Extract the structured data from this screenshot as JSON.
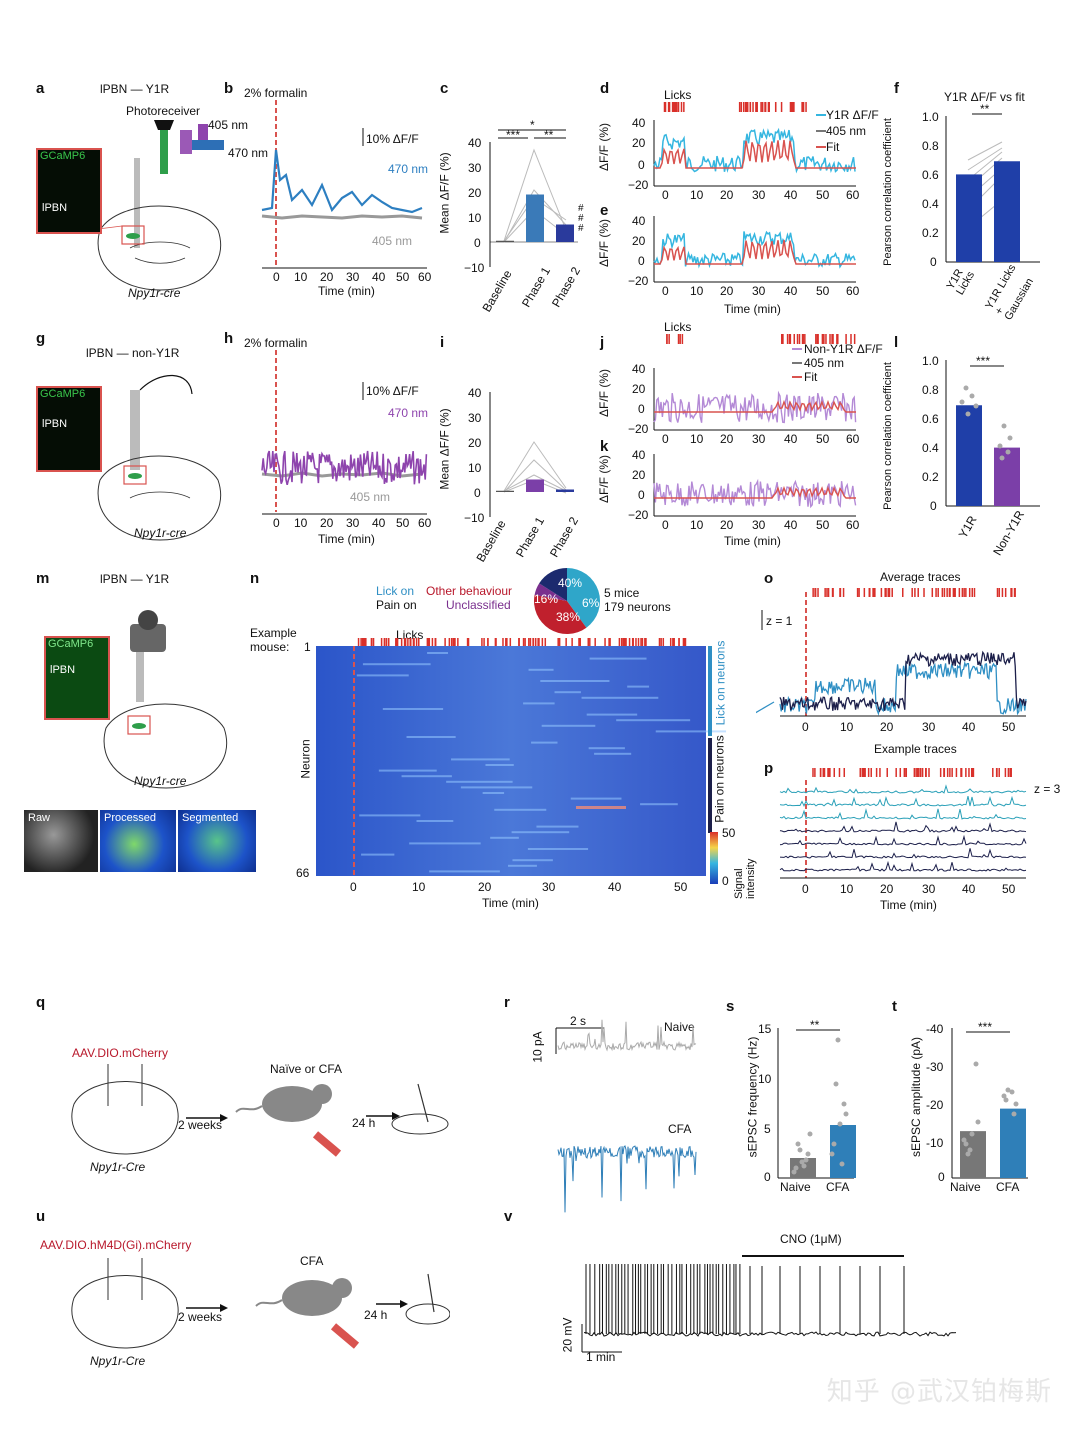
{
  "panels": {
    "a": {
      "letter": "a",
      "title": "lPBN — Y1R",
      "photoreceiver": "Photoreceiver",
      "nm405": "405 nm",
      "nm470": "470 nm",
      "gcamp": "GCaMP6",
      "region": "lPBN",
      "mouse": "Npy1r-cre"
    },
    "b": {
      "letter": "b",
      "stim": "2% formalin",
      "scale": "10% ΔF/F",
      "trace470": "470 nm",
      "trace405": "405 nm",
      "xlabel": "Time (min)",
      "xticks": [
        "0",
        "10",
        "20",
        "30",
        "40",
        "50",
        "60"
      ]
    },
    "c": {
      "letter": "c",
      "ylabel": "Mean ΔF/F (%)",
      "yticks": [
        "40",
        "30",
        "20",
        "10",
        "0",
        "−10"
      ],
      "categories": [
        "Baseline",
        "Phase 1",
        "Phase 2"
      ],
      "sig_top": "*",
      "sig_left": "***",
      "sig_right": "**",
      "sig_hash": "# # #"
    },
    "d": {
      "letter": "d",
      "licks": "Licks",
      "ylabel": "ΔF/F (%)",
      "yticks": [
        "40",
        "20",
        "0",
        "−20"
      ],
      "legend": [
        "Y1R ΔF/F",
        "405 nm",
        "Fit"
      ],
      "xticks": [
        "0",
        "10",
        "20",
        "30",
        "40",
        "50",
        "60"
      ]
    },
    "e": {
      "letter": "e",
      "ylabel": "ΔF/F (%)",
      "yticks": [
        "40",
        "20",
        "0",
        "−20"
      ],
      "xticks": [
        "0",
        "10",
        "20",
        "30",
        "40",
        "50",
        "60"
      ],
      "xlabel": "Time (min)"
    },
    "f": {
      "letter": "f",
      "title": "Y1R ΔF/F vs fit",
      "ylabel": "Pearson correlation coefficient",
      "yticks": [
        "1.0",
        "0.8",
        "0.6",
        "0.4",
        "0.2",
        "0"
      ],
      "categories": [
        "Y1R Licks",
        "Y1R Licks + Gaussian"
      ],
      "sig": "**"
    },
    "g": {
      "letter": "g",
      "title": "lPBN — non-Y1R",
      "gcamp": "GCaMP6",
      "region": "lPBN",
      "mouse": "Npy1r-cre"
    },
    "h": {
      "letter": "h",
      "stim": "2% formalin",
      "scale": "10% ΔF/F",
      "trace470": "470 nm",
      "trace405": "405 nm",
      "xlabel": "Time (min)",
      "xticks": [
        "0",
        "10",
        "20",
        "30",
        "40",
        "50",
        "60"
      ]
    },
    "i": {
      "letter": "i",
      "ylabel": "Mean ΔF/F (%)",
      "yticks": [
        "40",
        "30",
        "20",
        "10",
        "0",
        "−10"
      ],
      "categories": [
        "Baseline",
        "Phase 1",
        "Phase 2"
      ]
    },
    "j": {
      "letter": "j",
      "licks": "Licks",
      "ylabel": "ΔF/F (%)",
      "yticks": [
        "40",
        "20",
        "0",
        "−20"
      ],
      "legend": [
        "Non-Y1R ΔF/F",
        "405 nm",
        "Fit"
      ],
      "xticks": [
        "0",
        "10",
        "20",
        "30",
        "40",
        "50",
        "60"
      ]
    },
    "k": {
      "letter": "k",
      "ylabel": "ΔF/F (%)",
      "yticks": [
        "40",
        "20",
        "0",
        "−20"
      ],
      "xticks": [
        "0",
        "10",
        "20",
        "30",
        "40",
        "50",
        "60"
      ],
      "xlabel": "Time (min)"
    },
    "l": {
      "letter": "l",
      "ylabel": "Pearson correlation coefficient",
      "yticks": [
        "1.0",
        "0.8",
        "0.6",
        "0.4",
        "0.2",
        "0"
      ],
      "categories": [
        "Y1R",
        "Non-Y1R"
      ],
      "sig": "***"
    },
    "m": {
      "letter": "m",
      "title": "lPBN — Y1R",
      "gcamp": "GCaMP6",
      "region": "lPBN",
      "mouse": "Npy1r-cre",
      "img_raw": "Raw",
      "img_processed": "Processed",
      "img_segmented": "Segmented"
    },
    "n": {
      "letter": "n",
      "lick_on": "Lick on",
      "pain_on": "Pain on",
      "other": "Other behaviour",
      "unclassified": "Unclassified",
      "mice": "5 mice",
      "neurons": "179 neurons",
      "example": "Example",
      "mouse": "mouse:",
      "row_first": "1",
      "row_last": "66",
      "licks": "Licks",
      "ylabel": "Neuron",
      "xlabel": "Time (min)",
      "xticks": [
        "0",
        "10",
        "20",
        "30",
        "40",
        "50"
      ],
      "group1": "Lick on neurons",
      "group2": "Pain on neurons",
      "cbar_label": "Signal intensity",
      "cbar_max": "50",
      "cbar_min": "0",
      "pie": [
        {
          "label": "40%",
          "value": 40
        },
        {
          "label": "38%",
          "value": 38
        },
        {
          "label": "6%",
          "value": 6
        },
        {
          "label": "16%",
          "value": 16
        }
      ]
    },
    "o": {
      "letter": "o",
      "title": "Average traces",
      "scale": "z = 1",
      "xticks": [
        "0",
        "10",
        "20",
        "30",
        "40",
        "50"
      ],
      "subtitle": "Example traces"
    },
    "p": {
      "letter": "p",
      "scale": "z = 3",
      "xticks": [
        "0",
        "10",
        "20",
        "30",
        "40",
        "50"
      ],
      "xlabel": "Time (min)"
    },
    "q": {
      "letter": "q",
      "virus": "AAV.DIO.mCherry",
      "weeks": "2 weeks",
      "cond": "Naïve or CFA",
      "hours": "24 h",
      "mouse": "Npy1r-Cre"
    },
    "r": {
      "letter": "r",
      "time_scale": "2 s",
      "amp_scale": "10 pA",
      "naive": "Naive",
      "cfa": "CFA"
    },
    "s": {
      "letter": "s",
      "ylabel": "sEPSC frequency (Hz)",
      "yticks": [
        "15",
        "10",
        "5",
        "0"
      ],
      "categories": [
        "Naive",
        "CFA"
      ],
      "sig": "**"
    },
    "t": {
      "letter": "t",
      "ylabel": "sEPSC amplitude (pA)",
      "yticks": [
        "-40",
        "-30",
        "-20",
        "-10",
        "0"
      ],
      "categories": [
        "Naive",
        "CFA"
      ],
      "sig": "***"
    },
    "u": {
      "letter": "u",
      "virus": "AAV.DIO.hM4D(Gi).mCherry",
      "weeks": "2 weeks",
      "cond": "CFA",
      "hours": "24 h",
      "mouse": "Npy1r-Cre"
    },
    "v": {
      "letter": "v",
      "drug": "CNO (1μM)",
      "amp_scale": "20 mV",
      "time_scale": "1 min"
    }
  },
  "watermark": "知乎 @武汉铂梅斯",
  "chart_data": [
    {
      "panel": "c",
      "type": "bar",
      "title": "",
      "categories": [
        "Baseline",
        "Phase 1",
        "Phase 2"
      ],
      "values": [
        0.5,
        19,
        7
      ],
      "ylabel": "Mean ΔF/F (%)",
      "ylim": [
        -10,
        40
      ]
    },
    {
      "panel": "f",
      "type": "bar",
      "title": "Y1R ΔF/F vs fit",
      "categories": [
        "Y1R Licks",
        "Y1R Licks + Gaussian"
      ],
      "values": [
        0.6,
        0.69
      ],
      "ylabel": "Pearson correlation coefficient",
      "ylim": [
        0,
        1.0
      ]
    },
    {
      "panel": "i",
      "type": "bar",
      "title": "",
      "categories": [
        "Baseline",
        "Phase 1",
        "Phase 2"
      ],
      "values": [
        0.5,
        5,
        1
      ],
      "ylabel": "Mean ΔF/F (%)",
      "ylim": [
        -10,
        40
      ]
    },
    {
      "panel": "l",
      "type": "bar",
      "title": "",
      "categories": [
        "Y1R",
        "Non-Y1R"
      ],
      "values": [
        0.69,
        0.4
      ],
      "ylabel": "Pearson correlation coefficient",
      "ylim": [
        0,
        1.0
      ]
    },
    {
      "panel": "s",
      "type": "bar",
      "title": "",
      "categories": [
        "Naive",
        "CFA"
      ],
      "values": [
        2,
        5.3
      ],
      "ylabel": "sEPSC frequency (Hz)",
      "ylim": [
        0,
        15
      ]
    },
    {
      "panel": "t",
      "type": "bar",
      "title": "",
      "categories": [
        "Naive",
        "CFA"
      ],
      "values": [
        -12.5,
        -18.5
      ],
      "ylabel": "sEPSC amplitude (pA)",
      "ylim": [
        -40,
        0
      ]
    },
    {
      "panel": "n-pie",
      "type": "pie",
      "categories": [
        "Lick on",
        "Other behaviour",
        "Unclassified",
        "Pain on"
      ],
      "values": [
        40,
        38,
        6,
        16
      ]
    }
  ]
}
